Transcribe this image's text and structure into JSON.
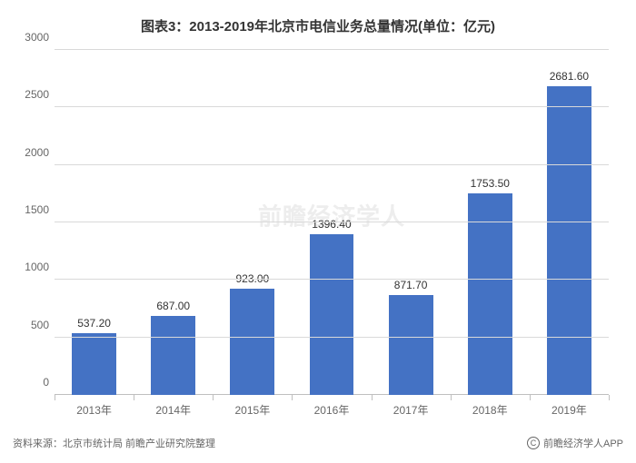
{
  "title": "图表3：2013-2019年北京市电信业务总量情况(单位：亿元)",
  "title_fontsize": 15,
  "title_color": "#333333",
  "source_text": "资料来源：北京市统计局 前瞻产业研究院整理",
  "credit_text": "前瞻经济学人APP",
  "watermark_text": "前瞻经济学人",
  "chart": {
    "type": "bar",
    "categories": [
      "2013年",
      "2014年",
      "2015年",
      "2016年",
      "2017年",
      "2018年",
      "2019年"
    ],
    "values": [
      537.2,
      687.0,
      923.0,
      1396.4,
      871.7,
      1753.5,
      2681.6
    ],
    "value_labels": [
      "537.20",
      "687.00",
      "923.00",
      "1396.40",
      "871.70",
      "1753.50",
      "2681.60"
    ],
    "bar_color": "#4472c4",
    "background_color": "#ffffff",
    "grid_color": "#d9d9d9",
    "axis_color": "#bfbfbf",
    "ylim": [
      0,
      3000
    ],
    "ytick_step": 500,
    "yticks": [
      0,
      500,
      1000,
      1500,
      2000,
      2500,
      3000
    ],
    "bar_width_ratio": 0.56,
    "value_label_fontsize": 12,
    "value_label_color": "#333333",
    "tick_label_fontsize": 12,
    "tick_label_color": "#666666"
  }
}
